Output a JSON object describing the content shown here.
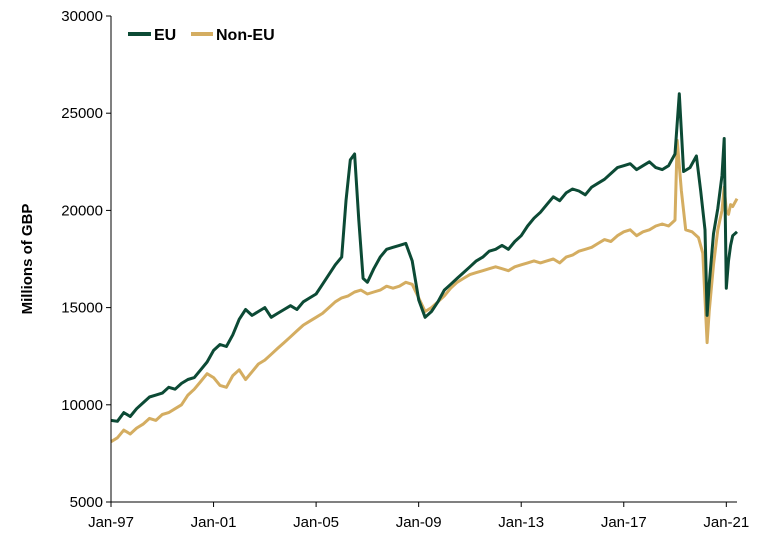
{
  "chart_data": {
    "type": "line",
    "title": "",
    "xlabel": "",
    "ylabel": "Millions of GBP",
    "ylim": [
      5000,
      30000
    ],
    "xlim": [
      "Jan-97",
      "Jun-21"
    ],
    "y_ticks": [
      5000,
      10000,
      15000,
      20000,
      25000,
      30000
    ],
    "y_tick_labels": [
      "5000",
      "10000",
      "15000",
      "20000",
      "25000",
      "30000"
    ],
    "x_tick_labels": [
      "Jan-97",
      "Jan-01",
      "Jan-05",
      "Jan-09",
      "Jan-13",
      "Jan-17",
      "Jan-21"
    ],
    "grid": false,
    "legend": "top-left",
    "series": [
      {
        "name": "EU",
        "color": "#0c4a35",
        "points": [
          [
            "1997-01",
            9200
          ],
          [
            "1997-04",
            9150
          ],
          [
            "1997-07",
            9600
          ],
          [
            "1997-10",
            9400
          ],
          [
            "1998-01",
            9800
          ],
          [
            "1998-04",
            10100
          ],
          [
            "1998-07",
            10400
          ],
          [
            "1998-10",
            10500
          ],
          [
            "1999-01",
            10600
          ],
          [
            "1999-04",
            10900
          ],
          [
            "1999-07",
            10800
          ],
          [
            "1999-10",
            11100
          ],
          [
            "2000-01",
            11300
          ],
          [
            "2000-04",
            11400
          ],
          [
            "2000-07",
            11800
          ],
          [
            "2000-10",
            12200
          ],
          [
            "2001-01",
            12800
          ],
          [
            "2001-04",
            13100
          ],
          [
            "2001-07",
            13000
          ],
          [
            "2001-10",
            13600
          ],
          [
            "2002-01",
            14400
          ],
          [
            "2002-04",
            14900
          ],
          [
            "2002-07",
            14600
          ],
          [
            "2002-10",
            14800
          ],
          [
            "2003-01",
            15000
          ],
          [
            "2003-04",
            14500
          ],
          [
            "2003-07",
            14700
          ],
          [
            "2003-10",
            14900
          ],
          [
            "2004-01",
            15100
          ],
          [
            "2004-04",
            14900
          ],
          [
            "2004-07",
            15300
          ],
          [
            "2004-10",
            15500
          ],
          [
            "2005-01",
            15700
          ],
          [
            "2005-04",
            16200
          ],
          [
            "2005-07",
            16700
          ],
          [
            "2005-10",
            17200
          ],
          [
            "2006-01",
            17600
          ],
          [
            "2006-03",
            20500
          ],
          [
            "2006-05",
            22600
          ],
          [
            "2006-07",
            22900
          ],
          [
            "2006-09",
            19500
          ],
          [
            "2006-11",
            16500
          ],
          [
            "2007-01",
            16300
          ],
          [
            "2007-04",
            17000
          ],
          [
            "2007-07",
            17600
          ],
          [
            "2007-10",
            18000
          ],
          [
            "2008-01",
            18100
          ],
          [
            "2008-04",
            18200
          ],
          [
            "2008-07",
            18300
          ],
          [
            "2008-10",
            17400
          ],
          [
            "2009-01",
            15400
          ],
          [
            "2009-04",
            14500
          ],
          [
            "2009-07",
            14800
          ],
          [
            "2009-10",
            15300
          ],
          [
            "2010-01",
            15900
          ],
          [
            "2010-04",
            16200
          ],
          [
            "2010-07",
            16500
          ],
          [
            "2010-10",
            16800
          ],
          [
            "2011-01",
            17100
          ],
          [
            "2011-04",
            17400
          ],
          [
            "2011-07",
            17600
          ],
          [
            "2011-10",
            17900
          ],
          [
            "2012-01",
            18000
          ],
          [
            "2012-04",
            18200
          ],
          [
            "2012-07",
            18000
          ],
          [
            "2012-10",
            18400
          ],
          [
            "2013-01",
            18700
          ],
          [
            "2013-04",
            19200
          ],
          [
            "2013-07",
            19600
          ],
          [
            "2013-10",
            19900
          ],
          [
            "2014-01",
            20300
          ],
          [
            "2014-04",
            20700
          ],
          [
            "2014-07",
            20500
          ],
          [
            "2014-10",
            20900
          ],
          [
            "2015-01",
            21100
          ],
          [
            "2015-04",
            21000
          ],
          [
            "2015-07",
            20800
          ],
          [
            "2015-10",
            21200
          ],
          [
            "2016-01",
            21400
          ],
          [
            "2016-04",
            21600
          ],
          [
            "2016-07",
            21900
          ],
          [
            "2016-10",
            22200
          ],
          [
            "2017-01",
            22300
          ],
          [
            "2017-04",
            22400
          ],
          [
            "2017-07",
            22100
          ],
          [
            "2017-10",
            22300
          ],
          [
            "2018-01",
            22500
          ],
          [
            "2018-04",
            22200
          ],
          [
            "2018-07",
            22100
          ],
          [
            "2018-10",
            22300
          ],
          [
            "2019-01",
            22900
          ],
          [
            "2019-03",
            26000
          ],
          [
            "2019-05",
            22000
          ],
          [
            "2019-08",
            22200
          ],
          [
            "2019-11",
            22800
          ],
          [
            "2020-01",
            21000
          ],
          [
            "2020-03",
            19000
          ],
          [
            "2020-04",
            14600
          ],
          [
            "2020-05",
            16200
          ],
          [
            "2020-07",
            18800
          ],
          [
            "2020-09",
            20100
          ],
          [
            "2020-11",
            21800
          ],
          [
            "2020-12",
            23700
          ],
          [
            "2021-01",
            16000
          ],
          [
            "2021-02",
            17400
          ],
          [
            "2021-03",
            18200
          ],
          [
            "2021-04",
            18700
          ],
          [
            "2021-06",
            18900
          ]
        ]
      },
      {
        "name": "Non-EU",
        "color": "#d4ad61",
        "points": [
          [
            "1997-01",
            8100
          ],
          [
            "1997-04",
            8300
          ],
          [
            "1997-07",
            8700
          ],
          [
            "1997-10",
            8500
          ],
          [
            "1998-01",
            8800
          ],
          [
            "1998-04",
            9000
          ],
          [
            "1998-07",
            9300
          ],
          [
            "1998-10",
            9200
          ],
          [
            "1999-01",
            9500
          ],
          [
            "1999-04",
            9600
          ],
          [
            "1999-07",
            9800
          ],
          [
            "1999-10",
            10000
          ],
          [
            "2000-01",
            10500
          ],
          [
            "2000-04",
            10800
          ],
          [
            "2000-07",
            11200
          ],
          [
            "2000-10",
            11600
          ],
          [
            "2001-01",
            11400
          ],
          [
            "2001-04",
            11000
          ],
          [
            "2001-07",
            10900
          ],
          [
            "2001-10",
            11500
          ],
          [
            "2002-01",
            11800
          ],
          [
            "2002-04",
            11300
          ],
          [
            "2002-07",
            11700
          ],
          [
            "2002-10",
            12100
          ],
          [
            "2003-01",
            12300
          ],
          [
            "2003-04",
            12600
          ],
          [
            "2003-07",
            12900
          ],
          [
            "2003-10",
            13200
          ],
          [
            "2004-01",
            13500
          ],
          [
            "2004-04",
            13800
          ],
          [
            "2004-07",
            14100
          ],
          [
            "2004-10",
            14300
          ],
          [
            "2005-01",
            14500
          ],
          [
            "2005-04",
            14700
          ],
          [
            "2005-07",
            15000
          ],
          [
            "2005-10",
            15300
          ],
          [
            "2006-01",
            15500
          ],
          [
            "2006-04",
            15600
          ],
          [
            "2006-07",
            15800
          ],
          [
            "2006-10",
            15900
          ],
          [
            "2007-01",
            15700
          ],
          [
            "2007-04",
            15800
          ],
          [
            "2007-07",
            15900
          ],
          [
            "2007-10",
            16100
          ],
          [
            "2008-01",
            16000
          ],
          [
            "2008-04",
            16100
          ],
          [
            "2008-07",
            16300
          ],
          [
            "2008-10",
            16200
          ],
          [
            "2009-01",
            15500
          ],
          [
            "2009-04",
            14800
          ],
          [
            "2009-07",
            15000
          ],
          [
            "2009-10",
            15300
          ],
          [
            "2010-01",
            15600
          ],
          [
            "2010-04",
            16000
          ],
          [
            "2010-07",
            16300
          ],
          [
            "2010-10",
            16500
          ],
          [
            "2011-01",
            16700
          ],
          [
            "2011-04",
            16800
          ],
          [
            "2011-07",
            16900
          ],
          [
            "2011-10",
            17000
          ],
          [
            "2012-01",
            17100
          ],
          [
            "2012-04",
            17000
          ],
          [
            "2012-07",
            16900
          ],
          [
            "2012-10",
            17100
          ],
          [
            "2013-01",
            17200
          ],
          [
            "2013-04",
            17300
          ],
          [
            "2013-07",
            17400
          ],
          [
            "2013-10",
            17300
          ],
          [
            "2014-01",
            17400
          ],
          [
            "2014-04",
            17500
          ],
          [
            "2014-07",
            17300
          ],
          [
            "2014-10",
            17600
          ],
          [
            "2015-01",
            17700
          ],
          [
            "2015-04",
            17900
          ],
          [
            "2015-07",
            18000
          ],
          [
            "2015-10",
            18100
          ],
          [
            "2016-01",
            18300
          ],
          [
            "2016-04",
            18500
          ],
          [
            "2016-07",
            18400
          ],
          [
            "2016-10",
            18700
          ],
          [
            "2017-01",
            18900
          ],
          [
            "2017-04",
            19000
          ],
          [
            "2017-07",
            18700
          ],
          [
            "2017-10",
            18900
          ],
          [
            "2018-01",
            19000
          ],
          [
            "2018-04",
            19200
          ],
          [
            "2018-07",
            19300
          ],
          [
            "2018-10",
            19200
          ],
          [
            "2019-01",
            19500
          ],
          [
            "2019-02",
            23600
          ],
          [
            "2019-04",
            21000
          ],
          [
            "2019-06",
            19000
          ],
          [
            "2019-09",
            18900
          ],
          [
            "2019-12",
            18600
          ],
          [
            "2020-02",
            17800
          ],
          [
            "2020-04",
            13200
          ],
          [
            "2020-05",
            14800
          ],
          [
            "2020-07",
            17200
          ],
          [
            "2020-09",
            19000
          ],
          [
            "2020-11",
            20000
          ],
          [
            "2020-12",
            21200
          ],
          [
            "2021-01",
            20000
          ],
          [
            "2021-02",
            19800
          ],
          [
            "2021-03",
            20300
          ],
          [
            "2021-04",
            20200
          ],
          [
            "2021-06",
            20600
          ]
        ]
      }
    ]
  }
}
